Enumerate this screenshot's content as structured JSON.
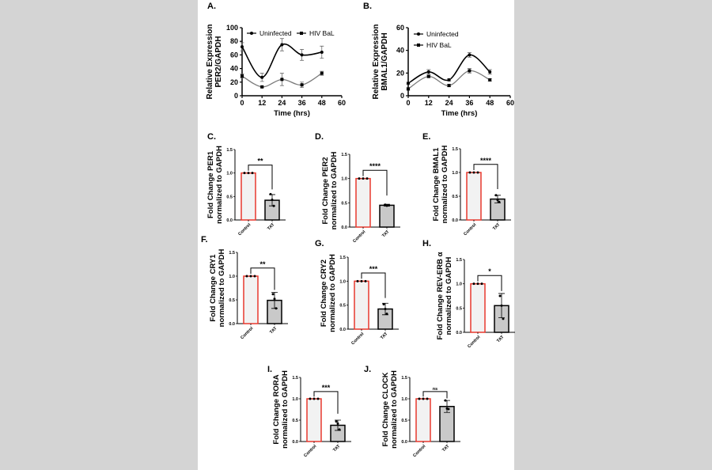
{
  "chart_data": [
    {
      "panel": "A.",
      "type": "line",
      "ylabel": [
        "Relative Expression",
        "PER2/GAPDH"
      ],
      "xlabel": "Time (hrs)",
      "xlim": [
        0,
        60
      ],
      "xticks": [
        0,
        12,
        24,
        36,
        48,
        60
      ],
      "ylim": [
        0,
        100
      ],
      "yticks": [
        0,
        20,
        40,
        60,
        80,
        100
      ],
      "legend_position": "top",
      "series": [
        {
          "name": "Uninfected",
          "color": "#000000",
          "marker": "circle",
          "x": [
            0,
            12,
            24,
            36,
            48
          ],
          "y": [
            72,
            27,
            75,
            60,
            64
          ],
          "err": [
            6,
            6,
            9,
            8,
            9
          ]
        },
        {
          "name": "HIV BaL",
          "color": "#7a7a7a",
          "marker": "square",
          "x": [
            0,
            12,
            24,
            36,
            48
          ],
          "y": [
            29,
            13,
            24,
            16,
            33
          ],
          "err": [
            3,
            1,
            9,
            4,
            3
          ]
        }
      ]
    },
    {
      "panel": "B.",
      "type": "line",
      "ylabel": [
        "Relative Expression",
        "BMAL1/GAPDH"
      ],
      "xlabel": "Time (hrs)",
      "xlim": [
        0,
        60
      ],
      "xticks": [
        0,
        12,
        24,
        36,
        48,
        60
      ],
      "ylim": [
        0,
        60
      ],
      "yticks": [
        0,
        20,
        40,
        60
      ],
      "legend_position": "top-left",
      "series": [
        {
          "name": "Uninfected",
          "color": "#000000",
          "marker": "circle",
          "x": [
            0,
            12,
            24,
            36,
            48
          ],
          "y": [
            11,
            21,
            14,
            36,
            21
          ],
          "err": [
            1,
            2,
            1,
            2,
            2
          ]
        },
        {
          "name": "HIV BaL",
          "color": "#7a7a7a",
          "marker": "square",
          "x": [
            0,
            12,
            24,
            36,
            48
          ],
          "y": [
            6,
            17,
            9,
            22,
            14
          ],
          "err": [
            1,
            1,
            1,
            2,
            1
          ]
        }
      ]
    },
    {
      "panel": "C.",
      "type": "bar",
      "ylabel": [
        "Fold Change PER1",
        "normalized to GAPDH"
      ],
      "categories": [
        "Control",
        "TAT"
      ],
      "values": [
        1.0,
        0.42
      ],
      "sd": [
        0,
        0.12
      ],
      "points": [
        [
          1,
          1,
          1
        ],
        [
          0.55,
          0.43,
          0.3
        ]
      ],
      "significance": "**",
      "ylim": [
        0,
        1.5
      ],
      "yticks": [
        "0.0",
        "0.5",
        "1.0",
        "1.5"
      ]
    },
    {
      "panel": "D.",
      "type": "bar",
      "ylabel": [
        "Fold Change PER2",
        "normalized to GAPDH"
      ],
      "categories": [
        "Control",
        "TAT"
      ],
      "values": [
        1.0,
        0.45
      ],
      "sd": [
        0,
        0.02
      ],
      "points": [
        [
          1,
          1,
          1
        ],
        [
          0.46,
          0.44,
          0.45
        ]
      ],
      "significance": "****",
      "ylim": [
        0,
        1.5
      ],
      "yticks": [
        "0.0",
        "0.5",
        "1.0",
        "1.5"
      ]
    },
    {
      "panel": "E.",
      "type": "bar",
      "ylabel": [
        "Fold Change BMAL1",
        "normalized to GAPDH"
      ],
      "categories": [
        "Control",
        "TAT"
      ],
      "values": [
        1.0,
        0.44
      ],
      "sd": [
        0,
        0.08
      ],
      "points": [
        [
          1,
          1,
          1
        ],
        [
          0.52,
          0.42,
          0.38
        ]
      ],
      "significance": "****",
      "ylim": [
        0,
        1.5
      ],
      "yticks": [
        "0.0",
        "0.5",
        "1.0",
        "1.5"
      ]
    },
    {
      "panel": "F.",
      "type": "bar",
      "ylabel": [
        "Fold Change CRY1",
        "normalized to GAPDH"
      ],
      "categories": [
        "Control",
        "TAT"
      ],
      "values": [
        1.0,
        0.49
      ],
      "sd": [
        0,
        0.17
      ],
      "points": [
        [
          1,
          1,
          1
        ],
        [
          0.62,
          0.52,
          0.32
        ]
      ],
      "significance": "**",
      "ylim": [
        0,
        1.5
      ],
      "yticks": [
        "0.0",
        "0.5",
        "1.0",
        "1.5"
      ]
    },
    {
      "panel": "G.",
      "type": "bar",
      "ylabel": [
        "Fold Change CRY2",
        "normalized to GAPDH"
      ],
      "categories": [
        "Control",
        "TAT"
      ],
      "values": [
        1.0,
        0.42
      ],
      "sd": [
        0,
        0.12
      ],
      "points": [
        [
          1,
          1,
          1
        ],
        [
          0.52,
          0.42,
          0.32
        ]
      ],
      "significance": "***",
      "ylim": [
        0,
        1.5
      ],
      "yticks": [
        "0.0",
        "0.5",
        "1.0",
        "1.5"
      ]
    },
    {
      "panel": "H.",
      "type": "bar",
      "ylabel": [
        "Fold Change REV-ERB α",
        "normalized to GAPDH"
      ],
      "categories": [
        "Control",
        "TAT"
      ],
      "values": [
        1.0,
        0.55
      ],
      "sd": [
        0,
        0.25
      ],
      "points": [
        [
          1,
          1,
          1
        ],
        [
          0.75,
          0.55,
          0.28
        ]
      ],
      "significance": "*",
      "ylim": [
        0,
        1.5
      ],
      "yticks": [
        "0.0",
        "0.5",
        "1.0",
        "1.5"
      ]
    },
    {
      "panel": "I.",
      "type": "bar",
      "ylabel": [
        "Fold Change RORA",
        "normalized to GAPDH"
      ],
      "categories": [
        "Control",
        "TAT"
      ],
      "values": [
        1.0,
        0.38
      ],
      "sd": [
        0,
        0.12
      ],
      "points": [
        [
          1,
          1,
          1
        ],
        [
          0.47,
          0.42,
          0.28
        ]
      ],
      "significance": "***",
      "ylim": [
        0,
        1.5
      ],
      "yticks": [
        "0.0",
        "0.5",
        "1.0",
        "1.5"
      ]
    },
    {
      "panel": "J.",
      "type": "bar",
      "ylabel": [
        "Fold Change CLOCK",
        "normalized to GAPDH"
      ],
      "categories": [
        "Control",
        "TAT"
      ],
      "values": [
        1.0,
        0.82
      ],
      "sd": [
        0,
        0.14
      ],
      "points": [
        [
          1,
          1,
          1
        ],
        [
          0.96,
          0.77,
          0.76
        ]
      ],
      "significance": "ns",
      "ylim": [
        0,
        1.5
      ],
      "yticks": [
        "0.0",
        "0.5",
        "1.0",
        "1.5"
      ]
    }
  ],
  "colors": {
    "control_bar_stroke": "#e8392e",
    "control_bar_fill": "#f2f2f2",
    "tat_bar_fill": "#c9c9c9",
    "background": "#d4d4d4"
  }
}
